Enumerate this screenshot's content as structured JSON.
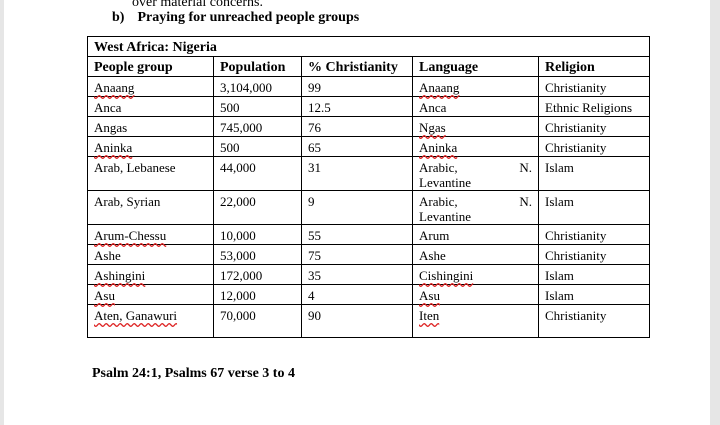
{
  "document": {
    "previous_line": "over material concerns.",
    "heading_number": "b)",
    "heading": "Praying for unreached people groups",
    "table": {
      "title": "West Africa: Nigeria",
      "headers": [
        "People group",
        "Population",
        "% Christianity",
        "Language",
        "Religion"
      ],
      "rows": [
        [
          "Anaang",
          "3,104,000",
          "99",
          "Anaang",
          "Christianity"
        ],
        [
          "Anca",
          "500",
          "12.5",
          "Anca",
          "Ethnic Religions"
        ],
        [
          "Angas",
          "745,000",
          "76",
          "Ngas",
          "Christianity"
        ],
        [
          "Aninka",
          "500",
          "65",
          "Aninka",
          "Christianity"
        ],
        [
          "Arab, Lebanese",
          "44,000",
          "31",
          "Arabic, N. Levantine",
          "Islam"
        ],
        [
          "Arab, Syrian",
          "22,000",
          "9",
          "Arabic, N. Levantine",
          "Islam"
        ],
        [
          "Arum-Chessu",
          "10,000",
          "55",
          "Arum",
          "Christianity"
        ],
        [
          "Ashe",
          "53,000",
          "75",
          "Ashe",
          "Christianity"
        ],
        [
          "Ashingini",
          "172,000",
          "35",
          "Cishingini",
          "Islam"
        ],
        [
          "Asu",
          "12,000",
          "4",
          "Asu",
          "Islam"
        ],
        [
          "Aten, Ganawuri",
          "70,000",
          "90",
          "Iten",
          "Christianity"
        ]
      ]
    },
    "footer": "Psalm 24:1, Psalms 67 verse 3 to 4"
  }
}
